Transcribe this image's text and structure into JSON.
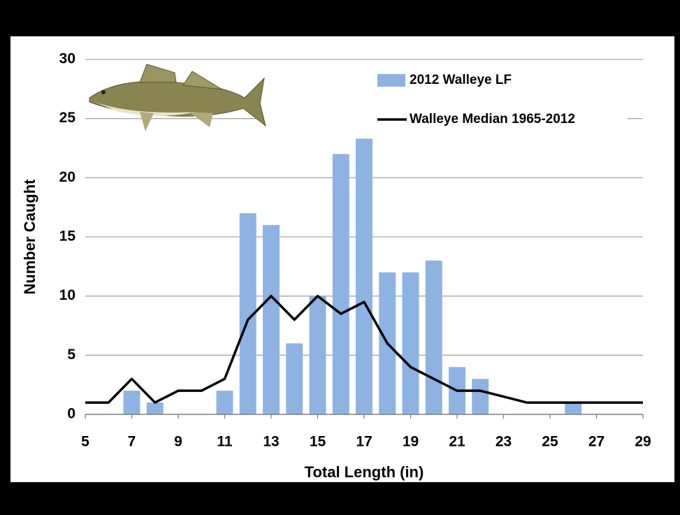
{
  "chart_data": {
    "type": "bar",
    "x_label": "Total Length (in)",
    "y_label": "Number Caught",
    "xlim": [
      5,
      29
    ],
    "xticks": [
      5,
      7,
      9,
      11,
      13,
      15,
      17,
      19,
      21,
      23,
      25,
      27,
      29
    ],
    "ylim": [
      0,
      30
    ],
    "yticks": [
      0,
      5,
      10,
      15,
      20,
      25,
      30
    ],
    "grid": true,
    "series": [
      {
        "name": "2012 Walleye LF",
        "type": "bar",
        "color": "#8db3e2",
        "x": [
          7,
          8,
          11,
          12,
          13,
          14,
          15,
          16,
          17,
          18,
          19,
          20,
          21,
          22,
          26
        ],
        "values": [
          2,
          1,
          2,
          17,
          16,
          6,
          10,
          22,
          23.3,
          12,
          12,
          13,
          4,
          3,
          1
        ]
      },
      {
        "name": "Walleye Median 1965-2012",
        "type": "line",
        "color": "#000000",
        "x": [
          5,
          6,
          7,
          8,
          9,
          10,
          11,
          12,
          13,
          14,
          15,
          16,
          17,
          18,
          19,
          20,
          21,
          22,
          23,
          24,
          25,
          26,
          27,
          28,
          29
        ],
        "values": [
          1,
          1,
          3,
          1,
          2,
          2,
          3,
          8,
          10,
          8,
          10,
          8.5,
          9.5,
          6,
          4,
          3,
          2,
          2,
          1.5,
          1,
          1,
          1,
          1,
          1,
          1
        ]
      }
    ]
  }
}
